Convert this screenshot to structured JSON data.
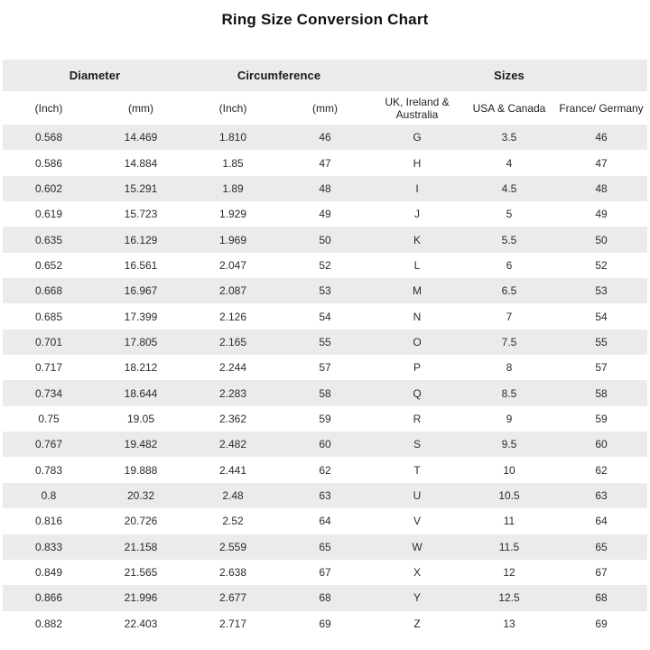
{
  "title": "Ring Size Conversion Chart",
  "colors": {
    "header_band_bg": "#ebebeb",
    "row_stripe_bg": "#ebebeb",
    "row_plain_bg": "#ffffff",
    "text": "#2b2b2b"
  },
  "table": {
    "group_headers": [
      {
        "label": "Diameter"
      },
      {
        "label": "Circumference"
      },
      {
        "label": "Sizes"
      }
    ],
    "column_headers": [
      "(Inch)",
      "(mm)",
      "(Inch)",
      "(mm)",
      "UK, Ireland & Australia",
      "USA & Canada",
      "France/ Germany"
    ],
    "rows": [
      [
        "0.568",
        "14.469",
        "1.810",
        "46",
        "G",
        "3.5",
        "46"
      ],
      [
        "0.586",
        "14.884",
        "1.85",
        "47",
        "H",
        "4",
        "47"
      ],
      [
        "0.602",
        "15.291",
        "1.89",
        "48",
        "I",
        "4.5",
        "48"
      ],
      [
        "0.619",
        "15.723",
        "1.929",
        "49",
        "J",
        "5",
        "49"
      ],
      [
        "0.635",
        "16.129",
        "1.969",
        "50",
        "K",
        "5.5",
        "50"
      ],
      [
        "0.652",
        "16.561",
        "2.047",
        "52",
        "L",
        "6",
        "52"
      ],
      [
        "0.668",
        "16.967",
        "2.087",
        "53",
        "M",
        "6.5",
        "53"
      ],
      [
        "0.685",
        "17.399",
        "2.126",
        "54",
        "N",
        "7",
        "54"
      ],
      [
        "0.701",
        "17.805",
        "2.165",
        "55",
        "O",
        "7.5",
        "55"
      ],
      [
        "0.717",
        "18.212",
        "2.244",
        "57",
        "P",
        "8",
        "57"
      ],
      [
        "0.734",
        "18.644",
        "2.283",
        "58",
        "Q",
        "8.5",
        "58"
      ],
      [
        "0.75",
        "19.05",
        "2.362",
        "59",
        "R",
        "9",
        "59"
      ],
      [
        "0.767",
        "19.482",
        "2.482",
        "60",
        "S",
        "9.5",
        "60"
      ],
      [
        "0.783",
        "19.888",
        "2.441",
        "62",
        "T",
        "10",
        "62"
      ],
      [
        "0.8",
        "20.32",
        "2.48",
        "63",
        "U",
        "10.5",
        "63"
      ],
      [
        "0.816",
        "20.726",
        "2.52",
        "64",
        "V",
        "11",
        "64"
      ],
      [
        "0.833",
        "21.158",
        "2.559",
        "65",
        "W",
        "11.5",
        "65"
      ],
      [
        "0.849",
        "21.565",
        "2.638",
        "67",
        "X",
        "12",
        "67"
      ],
      [
        "0.866",
        "21.996",
        "2.677",
        "68",
        "Y",
        "12.5",
        "68"
      ],
      [
        "0.882",
        "22.403",
        "2.717",
        "69",
        "Z",
        "13",
        "69"
      ]
    ]
  },
  "chart_data": {
    "type": "table",
    "title": "Ring Size Conversion Chart",
    "column_groups": [
      "Diameter",
      "Circumference",
      "Sizes"
    ],
    "columns": [
      "Diameter (Inch)",
      "Diameter (mm)",
      "Circumference (Inch)",
      "Circumference (mm)",
      "UK, Ireland & Australia",
      "USA & Canada",
      "France/ Germany"
    ],
    "rows": [
      [
        "0.568",
        "14.469",
        "1.810",
        "46",
        "G",
        "3.5",
        "46"
      ],
      [
        "0.586",
        "14.884",
        "1.85",
        "47",
        "H",
        "4",
        "47"
      ],
      [
        "0.602",
        "15.291",
        "1.89",
        "48",
        "I",
        "4.5",
        "48"
      ],
      [
        "0.619",
        "15.723",
        "1.929",
        "49",
        "J",
        "5",
        "49"
      ],
      [
        "0.635",
        "16.129",
        "1.969",
        "50",
        "K",
        "5.5",
        "50"
      ],
      [
        "0.652",
        "16.561",
        "2.047",
        "52",
        "L",
        "6",
        "52"
      ],
      [
        "0.668",
        "16.967",
        "2.087",
        "53",
        "M",
        "6.5",
        "53"
      ],
      [
        "0.685",
        "17.399",
        "2.126",
        "54",
        "N",
        "7",
        "54"
      ],
      [
        "0.701",
        "17.805",
        "2.165",
        "55",
        "O",
        "7.5",
        "55"
      ],
      [
        "0.717",
        "18.212",
        "2.244",
        "57",
        "P",
        "8",
        "57"
      ],
      [
        "0.734",
        "18.644",
        "2.283",
        "58",
        "Q",
        "8.5",
        "58"
      ],
      [
        "0.75",
        "19.05",
        "2.362",
        "59",
        "R",
        "9",
        "59"
      ],
      [
        "0.767",
        "19.482",
        "2.482",
        "60",
        "S",
        "9.5",
        "60"
      ],
      [
        "0.783",
        "19.888",
        "2.441",
        "62",
        "T",
        "10",
        "62"
      ],
      [
        "0.8",
        "20.32",
        "2.48",
        "63",
        "U",
        "10.5",
        "63"
      ],
      [
        "0.816",
        "20.726",
        "2.52",
        "64",
        "V",
        "11",
        "64"
      ],
      [
        "0.833",
        "21.158",
        "2.559",
        "65",
        "W",
        "11.5",
        "65"
      ],
      [
        "0.849",
        "21.565",
        "2.638",
        "67",
        "X",
        "12",
        "67"
      ],
      [
        "0.866",
        "21.996",
        "2.677",
        "68",
        "Y",
        "12.5",
        "68"
      ],
      [
        "0.882",
        "22.403",
        "2.717",
        "69",
        "Z",
        "13",
        "69"
      ]
    ]
  }
}
